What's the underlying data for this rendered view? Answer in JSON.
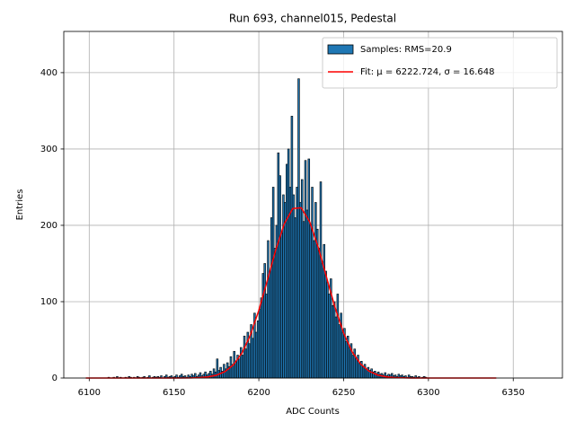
{
  "chart_data": {
    "type": "histogram",
    "title": "Run 693, channel015, Pedestal",
    "xlabel": "ADC Counts",
    "ylabel": "Entries",
    "name": "Samples: RMS=20.9",
    "color": "#1f77b4",
    "edgecolor": "#000000",
    "bins": [
      6110,
      6111,
      6112,
      6113,
      6114,
      6115,
      6116,
      6117,
      6118,
      6119,
      6120,
      6121,
      6122,
      6123,
      6124,
      6125,
      6126,
      6127,
      6128,
      6129,
      6130,
      6131,
      6132,
      6133,
      6134,
      6135,
      6136,
      6137,
      6138,
      6139,
      6140,
      6141,
      6142,
      6143,
      6144,
      6145,
      6146,
      6147,
      6148,
      6149,
      6150,
      6151,
      6152,
      6153,
      6154,
      6155,
      6156,
      6157,
      6158,
      6159,
      6160,
      6161,
      6162,
      6163,
      6164,
      6165,
      6166,
      6167,
      6168,
      6169,
      6170,
      6171,
      6172,
      6173,
      6174,
      6175,
      6176,
      6177,
      6178,
      6179,
      6180,
      6181,
      6182,
      6183,
      6184,
      6185,
      6186,
      6187,
      6188,
      6189,
      6190,
      6191,
      6192,
      6193,
      6194,
      6195,
      6196,
      6197,
      6198,
      6199,
      6200,
      6201,
      6202,
      6203,
      6204,
      6205,
      6206,
      6207,
      6208,
      6209,
      6210,
      6211,
      6212,
      6213,
      6214,
      6215,
      6216,
      6217,
      6218,
      6219,
      6220,
      6221,
      6222,
      6223,
      6224,
      6225,
      6226,
      6227,
      6228,
      6229,
      6230,
      6231,
      6232,
      6233,
      6234,
      6235,
      6236,
      6237,
      6238,
      6239,
      6240,
      6241,
      6242,
      6243,
      6244,
      6245,
      6246,
      6247,
      6248,
      6249,
      6250,
      6251,
      6252,
      6253,
      6254,
      6255,
      6256,
      6257,
      6258,
      6259,
      6260,
      6261,
      6262,
      6263,
      6264,
      6265,
      6266,
      6267,
      6268,
      6269,
      6270,
      6271,
      6272,
      6273,
      6274,
      6275,
      6276,
      6277,
      6278,
      6279,
      6280,
      6281,
      6282,
      6283,
      6284,
      6285,
      6286,
      6287,
      6288,
      6289,
      6290,
      6291,
      6292,
      6293,
      6294,
      6295,
      6296,
      6297,
      6298,
      6299,
      6300
    ],
    "values": [
      0,
      1,
      0,
      0,
      1,
      0,
      2,
      0,
      1,
      0,
      0,
      1,
      0,
      2,
      1,
      0,
      1,
      0,
      2,
      1,
      0,
      1,
      2,
      0,
      1,
      3,
      0,
      1,
      2,
      1,
      2,
      1,
      3,
      0,
      2,
      4,
      1,
      2,
      3,
      1,
      2,
      4,
      1,
      3,
      5,
      2,
      3,
      1,
      4,
      2,
      5,
      3,
      6,
      2,
      4,
      7,
      3,
      5,
      8,
      4,
      6,
      9,
      5,
      12,
      8,
      25,
      10,
      14,
      9,
      18,
      12,
      20,
      15,
      28,
      18,
      35,
      22,
      30,
      25,
      40,
      30,
      55,
      38,
      60,
      45,
      70,
      52,
      85,
      60,
      75,
      90,
      105,
      137,
      150,
      110,
      180,
      140,
      210,
      250,
      170,
      200,
      295,
      265,
      190,
      240,
      230,
      280,
      300,
      250,
      343,
      240,
      210,
      250,
      392,
      230,
      260,
      205,
      285,
      220,
      287,
      200,
      250,
      180,
      230,
      195,
      170,
      257,
      150,
      175,
      140,
      125,
      110,
      130,
      95,
      100,
      80,
      110,
      70,
      85,
      60,
      65,
      48,
      55,
      40,
      45,
      30,
      38,
      25,
      30,
      20,
      22,
      15,
      18,
      12,
      14,
      10,
      12,
      8,
      9,
      6,
      8,
      5,
      6,
      4,
      7,
      3,
      5,
      4,
      6,
      3,
      4,
      2,
      5,
      3,
      4,
      2,
      3,
      1,
      4,
      2,
      2,
      1,
      3,
      1,
      2,
      0,
      1,
      2,
      1,
      0
    ],
    "fit": {
      "name": "Fit: μ = 6222.724, σ = 16.648",
      "color": "#ff0000",
      "x": [
        6098,
        6110,
        6120,
        6130,
        6140,
        6150,
        6160,
        6165,
        6170,
        6175,
        6180,
        6185,
        6190,
        6195,
        6200,
        6205,
        6210,
        6215,
        6220,
        6225,
        6230,
        6235,
        6240,
        6245,
        6250,
        6255,
        6260,
        6265,
        6270,
        6275,
        6280,
        6290,
        6300,
        6310,
        6320,
        6330,
        6340
      ],
      "values": [
        0,
        0,
        0,
        0,
        0,
        0.02,
        0.19,
        0.55,
        1.5,
        3.7,
        8.4,
        17.2,
        32.6,
        56.2,
        88.7,
        127.7,
        168,
        202,
        222,
        223,
        204.5,
        171.4,
        131.3,
        91.9,
        58.8,
        34.3,
        18.3,
        8.95,
        4,
        1.6,
        0.6,
        0.06,
        0,
        0,
        0,
        0,
        0
      ]
    },
    "xlim": [
      6085,
      6379
    ],
    "ylim": [
      0,
      454
    ],
    "xticks": [
      6100,
      6150,
      6200,
      6250,
      6300,
      6350
    ],
    "yticks": [
      0,
      100,
      200,
      300,
      400
    ],
    "grid": true,
    "legend": "upper right"
  }
}
